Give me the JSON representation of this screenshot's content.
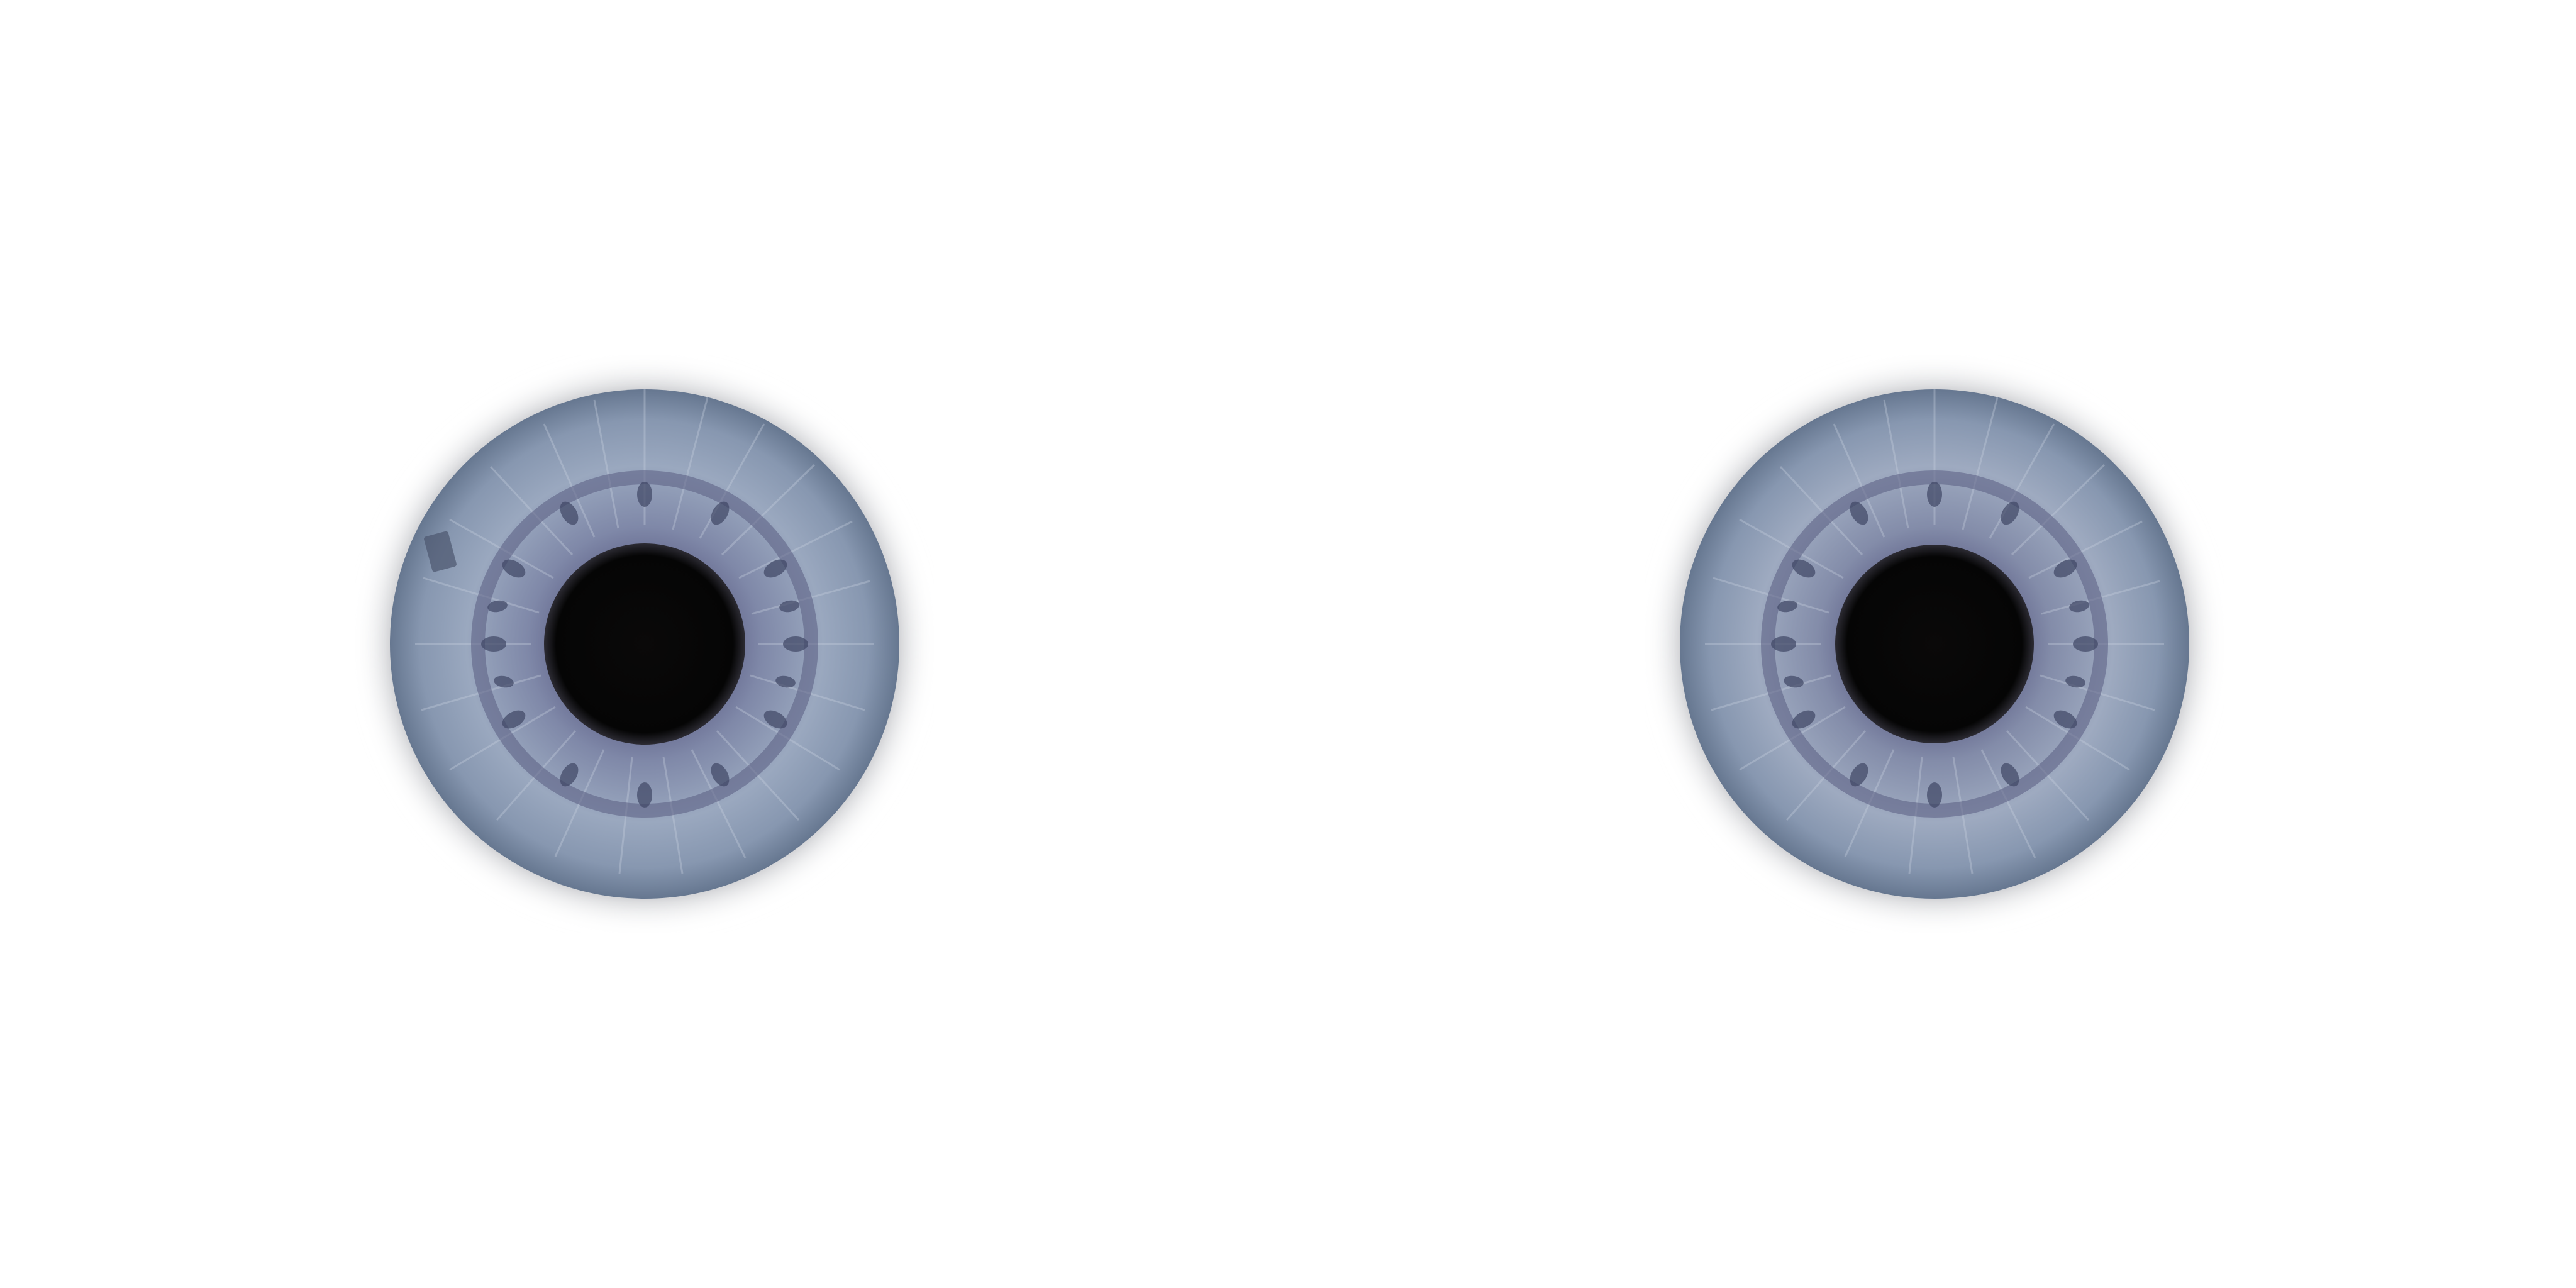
{
  "scene": {
    "background_color": "#ffffff",
    "iris_colors": {
      "outer_limbal_ring": "#4b4e58",
      "stroma": "#8a9bb4",
      "stroma_light": "#b3c0d2",
      "collarette": "#6d6f93",
      "crypt": "#3f4664",
      "pupil": "#050505"
    },
    "eyes": [
      {
        "id": "left",
        "icon": "iris-icon"
      },
      {
        "id": "right",
        "icon": "iris-icon"
      }
    ]
  }
}
